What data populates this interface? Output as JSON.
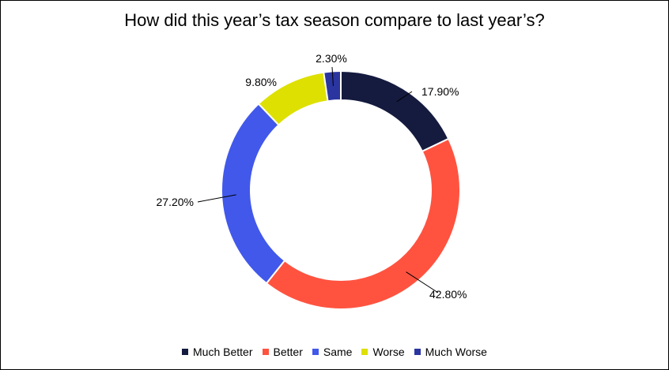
{
  "chart_data": {
    "type": "pie",
    "title": "How did this year’s tax season compare to last year’s?",
    "categories": [
      "Much Better",
      "Better",
      "Same",
      "Worse",
      "Much Worse"
    ],
    "values": [
      17.9,
      42.8,
      27.2,
      9.8,
      2.3
    ],
    "data_labels": [
      "17.90%",
      "42.80%",
      "27.20%",
      "9.80%",
      "2.30%"
    ],
    "colors": [
      "#151B3F",
      "#FF5340",
      "#4158EB",
      "#DDE000",
      "#2A35A0"
    ],
    "donut": true,
    "legend_position": "bottom"
  }
}
